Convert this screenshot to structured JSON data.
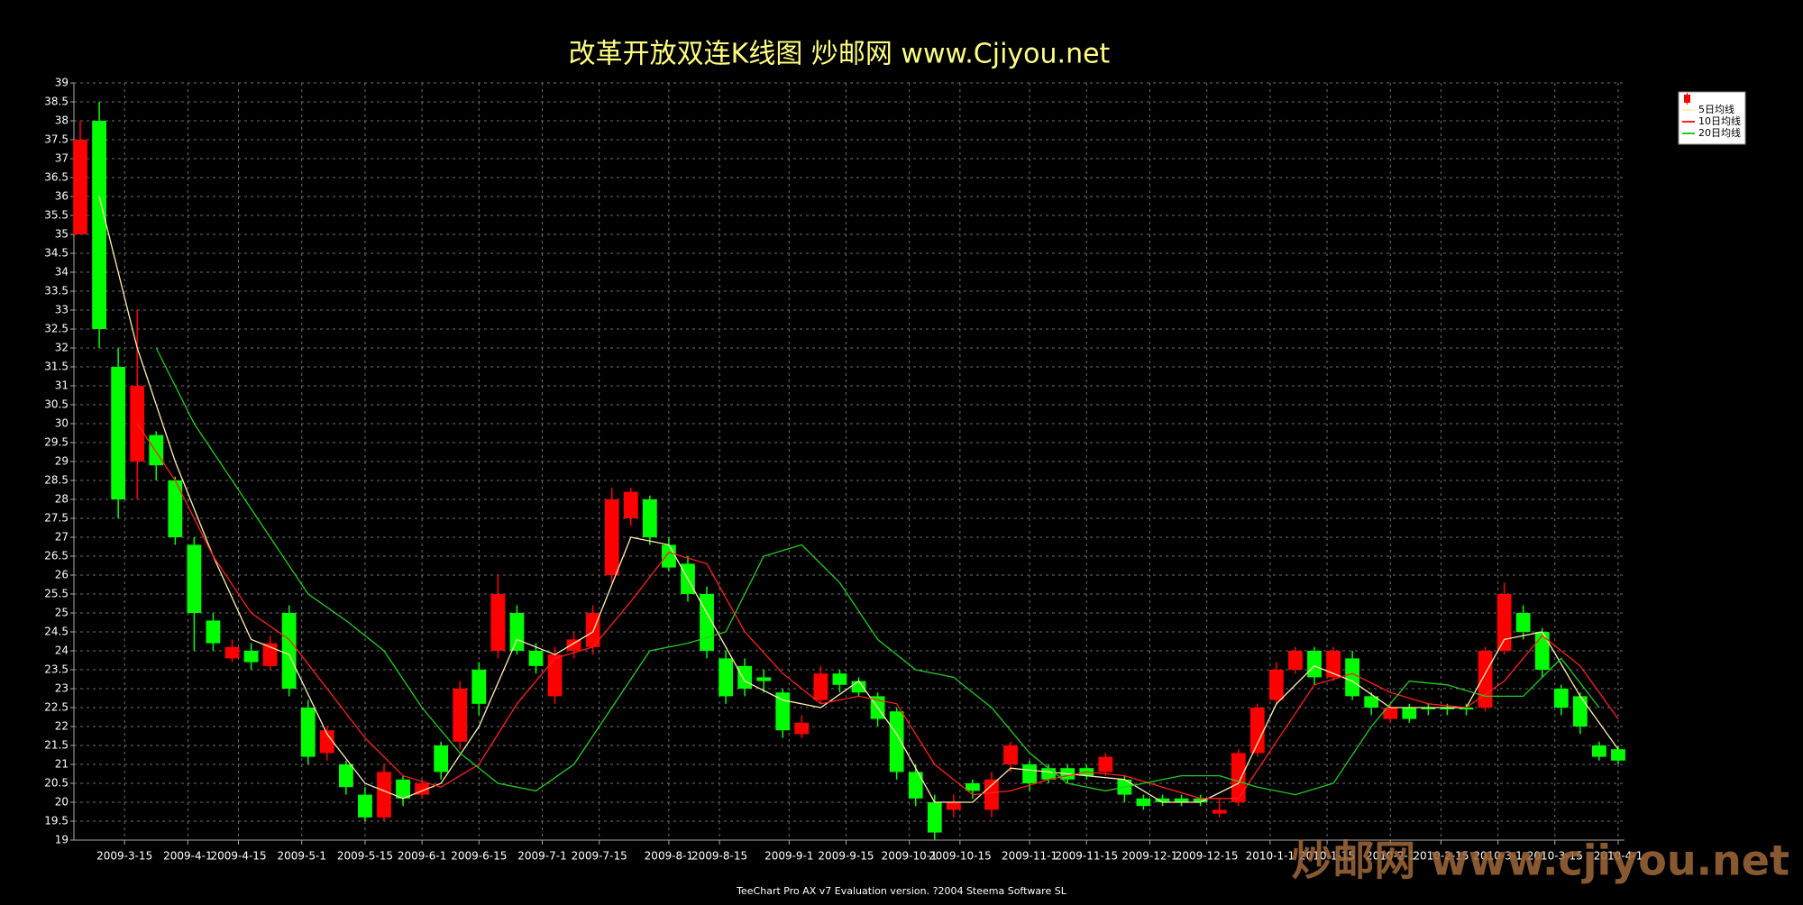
{
  "chart_data": {
    "type": "candlestick",
    "title": "改革开放双连K线图  炒邮网 www.Cjiyou.net",
    "footer": "TeeChart Pro AX v7 Evaluation version. ?2004 Steema Software SL",
    "watermark": "炒邮网 www.cjiyou.net",
    "xlim": [
      0,
      245
    ],
    "xticks": [
      {
        "value": 8,
        "label": "2009-3-15"
      },
      {
        "value": 18,
        "label": "2009-4-1"
      },
      {
        "value": 26,
        "label": "2009-4-15"
      },
      {
        "value": 36,
        "label": "2009-5-1"
      },
      {
        "value": 46,
        "label": "2009-5-15"
      },
      {
        "value": 55,
        "label": "2009-6-1"
      },
      {
        "value": 64,
        "label": "2009-6-15"
      },
      {
        "value": 74,
        "label": "2009-7-1"
      },
      {
        "value": 83,
        "label": "2009-7-15"
      },
      {
        "value": 94,
        "label": "2009-8-1"
      },
      {
        "value": 102,
        "label": "2009-8-15"
      },
      {
        "value": 113,
        "label": "2009-9-1"
      },
      {
        "value": 122,
        "label": "2009-9-15"
      },
      {
        "value": 132,
        "label": "2009-10-1"
      },
      {
        "value": 140,
        "label": "2009-10-15"
      },
      {
        "value": 151,
        "label": "2009-11-1"
      },
      {
        "value": 160,
        "label": "2009-11-15"
      },
      {
        "value": 170,
        "label": "2009-12-1"
      },
      {
        "value": 179,
        "label": "2009-12-15"
      },
      {
        "value": 189,
        "label": "2010-1-1"
      },
      {
        "value": 198,
        "label": "2010-1-15"
      },
      {
        "value": 208,
        "label": "2010-2-1"
      },
      {
        "value": 216,
        "label": "2010-2-15"
      },
      {
        "value": 225,
        "label": "2010-3-1"
      },
      {
        "value": 234,
        "label": "2010-3-15"
      },
      {
        "value": 244,
        "label": "2010-4-1"
      }
    ],
    "ylim": [
      19,
      39
    ],
    "yticks": [
      19,
      19.5,
      20,
      20.5,
      21,
      21.5,
      22,
      22.5,
      23,
      23.5,
      24,
      24.5,
      25,
      25.5,
      26,
      26.5,
      27,
      27.5,
      28,
      28.5,
      29,
      29.5,
      30,
      30.5,
      31,
      31.5,
      32,
      32.5,
      33,
      33.5,
      34,
      34.5,
      35,
      35.5,
      36,
      36.5,
      37,
      37.5,
      38,
      38.5,
      39
    ],
    "grid": true,
    "up_color": "#ff0000",
    "down_color": "#00ff00",
    "x": [
      1,
      4,
      7,
      10,
      13,
      16,
      19,
      22,
      25,
      28,
      31,
      34,
      37,
      40,
      43,
      46,
      49,
      52,
      55,
      58,
      61,
      64,
      67,
      70,
      73,
      76,
      79,
      82,
      85,
      88,
      91,
      94,
      97,
      100,
      103,
      106,
      109,
      112,
      115,
      118,
      121,
      124,
      127,
      130,
      133,
      136,
      139,
      142,
      145,
      148,
      151,
      154,
      157,
      160,
      163,
      166,
      169,
      172,
      175,
      178,
      181,
      184,
      187,
      190,
      193,
      196,
      199,
      202,
      205,
      208,
      211,
      214,
      217,
      220,
      223,
      226,
      229,
      232,
      235,
      238,
      241,
      244
    ],
    "open": [
      35,
      38,
      31.5,
      29,
      29.7,
      28.5,
      26.8,
      24.8,
      23.8,
      24,
      23.6,
      25,
      22.5,
      21.3,
      21,
      20.2,
      19.6,
      20.6,
      20.2,
      21.5,
      21.6,
      23.5,
      24,
      25,
      24,
      22.8,
      24,
      24.1,
      26,
      27.5,
      28,
      26.8,
      26.3,
      25.5,
      23.8,
      23.6,
      23.3,
      22.9,
      21.8,
      22.7,
      23.4,
      23.2,
      22.8,
      22.4,
      20.8,
      20,
      19.8,
      20.5,
      19.8,
      21,
      21,
      20.9,
      20.9,
      20.9,
      20.8,
      20.6,
      20.1,
      20.1,
      20.1,
      20.1,
      19.7,
      20,
      21.3,
      22.7,
      23.5,
      24,
      23.3,
      23.8,
      22.8,
      22.2,
      22.5,
      22.5,
      22.5,
      22.5,
      22.5,
      24,
      25,
      24.5,
      23,
      22.8,
      21.5,
      21.4
    ],
    "high": [
      38,
      38.5,
      32,
      33,
      29.8,
      28.6,
      27,
      25,
      24.3,
      24.2,
      24.4,
      25.2,
      22.7,
      22,
      21.1,
      20.4,
      21,
      20.7,
      20.6,
      21.6,
      23.2,
      23.7,
      26,
      25.2,
      24.2,
      24.1,
      24.5,
      25.2,
      28.3,
      28.3,
      28.1,
      27,
      26.5,
      25.7,
      24,
      23.8,
      23.5,
      23,
      22.3,
      23.6,
      23.5,
      23.3,
      22.9,
      22.5,
      21,
      20.2,
      20.2,
      20.6,
      20.8,
      21.6,
      21.1,
      21,
      21,
      21,
      21.3,
      20.7,
      20.2,
      20.2,
      20.2,
      20.2,
      20.1,
      21.4,
      22.6,
      23.7,
      24.1,
      24.1,
      24.1,
      24,
      22.9,
      22.6,
      22.6,
      22.6,
      22.6,
      22.6,
      24.1,
      25.8,
      25.2,
      24.6,
      23.1,
      22.9,
      21.6,
      21.5
    ],
    "low": [
      35,
      32,
      27.5,
      28,
      28.5,
      26.8,
      24,
      24,
      23.7,
      23.5,
      23.5,
      22.8,
      21,
      21.1,
      20.2,
      19.5,
      19.5,
      19.9,
      20.1,
      20.6,
      21.4,
      22.3,
      23.8,
      23.9,
      23.4,
      22.6,
      23.8,
      23.9,
      25.8,
      27.3,
      26.8,
      26.1,
      25.3,
      23.8,
      22.6,
      22.8,
      22.9,
      21.7,
      21.7,
      22.6,
      22.9,
      22.8,
      22,
      20.6,
      19.9,
      19,
      19.6,
      20.1,
      19.6,
      20.8,
      20.3,
      20.5,
      20.5,
      20.6,
      20.7,
      20,
      19.8,
      19.9,
      19.9,
      19.9,
      19.6,
      19.9,
      21.2,
      22.6,
      23.4,
      23.1,
      23.2,
      22.7,
      22.3,
      22.1,
      22.1,
      22.3,
      22.3,
      22.3,
      22.4,
      23.9,
      24.3,
      23.3,
      22.3,
      21.8,
      21.1,
      21
    ],
    "close": [
      37.5,
      32.5,
      28,
      31,
      28.9,
      27,
      25,
      24.2,
      24.1,
      23.7,
      24.2,
      23,
      21.2,
      21.9,
      20.4,
      19.6,
      20.8,
      20.1,
      20.5,
      20.8,
      23,
      22.6,
      25.5,
      24,
      23.6,
      23.9,
      24.3,
      25,
      28,
      28.2,
      27,
      26.2,
      25.5,
      24,
      22.8,
      23,
      23.2,
      21.9,
      22.1,
      23.4,
      23.1,
      22.9,
      22.2,
      20.8,
      20.1,
      19.2,
      20,
      20.3,
      20.6,
      21.5,
      20.5,
      20.6,
      20.6,
      20.7,
      21.2,
      20.2,
      19.9,
      20,
      20,
      20,
      19.8,
      21.3,
      22.5,
      23.5,
      24,
      23.3,
      24,
      22.8,
      22.5,
      22.5,
      22.2,
      22.5,
      22.5,
      22.5,
      24,
      25.5,
      24.5,
      23.5,
      22.5,
      22,
      21.2,
      21.1
    ],
    "series": [
      {
        "name": "5日均线",
        "color": "#fff0b0",
        "x": [
          4,
          10,
          16,
          22,
          28,
          34,
          40,
          46,
          52,
          58,
          64,
          70,
          76,
          82,
          88,
          94,
          100,
          106,
          112,
          118,
          124,
          130,
          136,
          142,
          148,
          154,
          160,
          166,
          172,
          178,
          184,
          190,
          196,
          202,
          208,
          214,
          220,
          226,
          232,
          238,
          244
        ],
        "values": [
          36,
          32,
          29,
          26.5,
          24.3,
          23.9,
          21.8,
          20.5,
          20.1,
          20.5,
          22,
          24.3,
          23.9,
          24.5,
          27,
          26.8,
          25,
          23.2,
          22.7,
          22.5,
          23.2,
          21.8,
          20,
          20,
          20.9,
          20.8,
          20.7,
          20.6,
          20,
          20,
          20.5,
          22.6,
          23.6,
          23.2,
          22.5,
          22.5,
          22.5,
          24.3,
          24.5,
          22.8,
          21.4
        ]
      },
      {
        "name": "10日均线",
        "color": "#ff2020",
        "x": [
          10,
          16,
          22,
          28,
          34,
          40,
          46,
          52,
          58,
          64,
          70,
          76,
          82,
          88,
          94,
          100,
          106,
          112,
          118,
          124,
          130,
          136,
          142,
          148,
          154,
          160,
          166,
          172,
          178,
          184,
          190,
          196,
          202,
          208,
          214,
          220,
          226,
          232,
          238,
          244
        ],
        "values": [
          30,
          28.5,
          26.5,
          25,
          24.3,
          23,
          21.7,
          20.7,
          20.4,
          21,
          22.6,
          23.8,
          24.1,
          25.3,
          26.6,
          26.3,
          24.5,
          23.4,
          22.6,
          22.8,
          22.6,
          21,
          20.2,
          20.3,
          20.6,
          20.8,
          20.7,
          20.4,
          20.1,
          20.1,
          21.6,
          23.1,
          23.4,
          22.9,
          22.6,
          22.5,
          23.2,
          24.4,
          23.6,
          22.2
        ]
      },
      {
        "name": "20日均线",
        "color": "#22cc22",
        "x": [
          13,
          19,
          25,
          31,
          37,
          43,
          49,
          55,
          61,
          67,
          73,
          79,
          85,
          91,
          97,
          103,
          109,
          115,
          121,
          127,
          133,
          139,
          145,
          151,
          157,
          163,
          169,
          175,
          181,
          187,
          193,
          199,
          205,
          211,
          217,
          223,
          229,
          235,
          241
        ],
        "values": [
          32,
          30,
          28.5,
          27,
          25.5,
          24.8,
          24,
          22.5,
          21.3,
          20.5,
          20.3,
          21,
          22.5,
          24,
          24.2,
          24.5,
          26.5,
          26.8,
          25.8,
          24.3,
          23.5,
          23.3,
          22.5,
          21.3,
          20.5,
          20.3,
          20.5,
          20.7,
          20.7,
          20.4,
          20.2,
          20.5,
          22,
          23.2,
          23.1,
          22.8,
          22.8,
          23.8,
          22.5
        ]
      }
    ]
  }
}
